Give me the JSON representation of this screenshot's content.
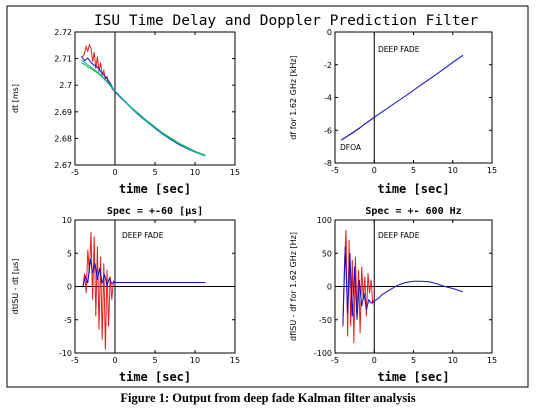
{
  "figure": {
    "suptitle": "ISU Time Delay and Doppler Prediction Filter",
    "caption": "Figure 1: Output from deep fade Kalman filter analysis"
  },
  "chart_data": [
    {
      "type": "line",
      "title": "",
      "xlabel": "time [sec]",
      "ylabel": "dt [ms]",
      "xlim": [
        -5,
        15
      ],
      "ylim": [
        2.67,
        2.72
      ],
      "xticks": [
        "-5",
        "0",
        "5",
        "10",
        "15"
      ],
      "yticks": [
        "2.72",
        "2.71",
        "2.7",
        "2.69",
        "2.68",
        "2.67"
      ],
      "annotations": [],
      "series": [
        {
          "color": "#e02020",
          "x": [
            -4.2,
            -3.9,
            -3.6,
            -3.4,
            -3.2,
            -3.0,
            -2.8,
            -2.6,
            -2.4,
            -2.2,
            -2.0,
            -1.8,
            -1.6,
            -1.4,
            -1.2,
            -1.0,
            -0.8,
            -0.6,
            -0.4,
            -0.2,
            0.0
          ],
          "y": [
            2.7105,
            2.7112,
            2.7145,
            2.7128,
            2.7152,
            2.7138,
            2.7088,
            2.7125,
            2.7062,
            2.7108,
            2.7052,
            2.7085,
            2.7038,
            2.7055,
            2.7022,
            2.7032,
            2.7005,
            2.7008,
            2.6988,
            2.6982,
            2.6975
          ]
        },
        {
          "color": "#1010c8",
          "x": [
            -4.2,
            -3.8,
            -3.4,
            -3.0,
            -2.6,
            -2.2,
            -1.8,
            -1.4,
            -1.0,
            -0.6,
            -0.2,
            0.0,
            1,
            2,
            3,
            4,
            5,
            6,
            7,
            8,
            9,
            10,
            11.3
          ],
          "y": [
            2.7108,
            2.7092,
            2.7102,
            2.7085,
            2.7075,
            2.7068,
            2.7052,
            2.7038,
            2.7025,
            2.7008,
            2.6985,
            2.6975,
            2.6945,
            2.6915,
            2.6887,
            2.6862,
            2.6838,
            2.6815,
            2.6795,
            2.6777,
            2.6762,
            2.6748,
            2.6735
          ]
        },
        {
          "color": "#20b020",
          "x": [
            -4.2,
            -3.0,
            -2.0,
            -1.0,
            0.0,
            2,
            4,
            6,
            8,
            10,
            11.3
          ],
          "y": [
            2.7085,
            2.7062,
            2.7042,
            2.7012,
            2.6978,
            2.6918,
            2.6866,
            2.682,
            2.6782,
            2.6752,
            2.6737
          ]
        },
        {
          "color": "#00b8b8",
          "x": [
            -4.2,
            -3.0,
            -2.0,
            -1.0,
            0.0,
            2,
            4,
            6,
            8,
            10,
            11.3
          ],
          "y": [
            2.7095,
            2.7068,
            2.7046,
            2.7015,
            2.6979,
            2.6916,
            2.6863,
            2.6817,
            2.6779,
            2.6749,
            2.6733
          ]
        }
      ]
    },
    {
      "type": "line",
      "title": "",
      "xlabel": "time [sec]",
      "ylabel": "df for 1.62 GHz [kHz]",
      "xlim": [
        -5,
        15
      ],
      "ylim": [
        -8,
        0
      ],
      "xticks": [
        "-5",
        "0",
        "5",
        "10",
        "15"
      ],
      "yticks": [
        "0",
        "-2",
        "-4",
        "-6",
        "-8"
      ],
      "annotations": [
        "DEEP FADE",
        "DFOA"
      ],
      "series": [
        {
          "color": "#e02020",
          "x": [
            -4.2,
            -3.6,
            -3.0,
            -2.4,
            -1.8,
            -1.2,
            -0.6,
            0.0
          ],
          "y": [
            -6.62,
            -6.42,
            -6.25,
            -6.05,
            -5.85,
            -5.62,
            -5.42,
            -5.22
          ]
        },
        {
          "color": "#1010c8",
          "x": [
            -4.2,
            -3.0,
            -2.0,
            -1.0,
            0.0,
            2,
            4,
            6,
            8,
            10,
            11.3
          ],
          "y": [
            -6.6,
            -6.22,
            -5.9,
            -5.55,
            -5.2,
            -4.55,
            -3.9,
            -3.22,
            -2.55,
            -1.85,
            -1.42
          ]
        }
      ]
    },
    {
      "type": "line",
      "title": "Spec = +-60 [μs]",
      "xlabel": "time [sec]",
      "ylabel": "dtISU - dt [μs]",
      "xlim": [
        -5,
        15
      ],
      "ylim": [
        -10,
        10
      ],
      "xticks": [
        "-5",
        "0",
        "5",
        "10",
        "15"
      ],
      "yticks": [
        "10",
        "5",
        "0",
        "-5",
        "-10"
      ],
      "annotations": [
        "DEEP FADE"
      ],
      "series": [
        {
          "color": "#e02020",
          "x": [
            -4.0,
            -3.8,
            -3.6,
            -3.4,
            -3.2,
            -3.0,
            -2.8,
            -2.6,
            -2.4,
            -2.2,
            -2.0,
            -1.8,
            -1.6,
            -1.4,
            -1.2,
            -1.0,
            -0.8,
            -0.6,
            -0.4,
            -0.2,
            0.0
          ],
          "y": [
            0,
            2.0,
            -1.0,
            5.5,
            2.0,
            8.2,
            -2.0,
            7.5,
            -4.5,
            6.0,
            -6.5,
            4.5,
            -8.0,
            3.5,
            -9.5,
            2.5,
            -6.0,
            1.5,
            -2.0,
            0.8,
            0.5
          ]
        },
        {
          "color": "#1010c8",
          "x": [
            -4.0,
            -3.7,
            -3.4,
            -3.1,
            -2.8,
            -2.5,
            -2.2,
            -1.9,
            -1.6,
            -1.3,
            -1.0,
            -0.7,
            -0.4,
            -0.1,
            0.0,
            2,
            4,
            6,
            8,
            10,
            11.3
          ],
          "y": [
            0.0,
            1.5,
            0.5,
            4.2,
            2.0,
            3.5,
            1.0,
            2.8,
            0.5,
            1.8,
            0.2,
            1.2,
            0.4,
            0.7,
            0.6,
            0.6,
            0.6,
            0.6,
            0.6,
            0.6,
            0.6
          ]
        }
      ]
    },
    {
      "type": "line",
      "title": "Spec = +- 600 Hz",
      "xlabel": "time [sec]",
      "ylabel": "dfISU - df for 1.62 GHz [Hz]",
      "xlim": [
        -5,
        15
      ],
      "ylim": [
        -100,
        100
      ],
      "xticks": [
        "-5",
        "0",
        "5",
        "10",
        "15"
      ],
      "yticks": [
        "100",
        "50",
        "0",
        "-50",
        "-100"
      ],
      "annotations": [
        "DEEP FADE"
      ],
      "series": [
        {
          "color": "#e02020",
          "x": [
            -4.0,
            -3.8,
            -3.6,
            -3.4,
            -3.2,
            -3.0,
            -2.8,
            -2.6,
            -2.4,
            -2.2,
            -2.0,
            -1.8,
            -1.6,
            -1.4,
            -1.2,
            -1.0,
            -0.8,
            -0.6,
            -0.4,
            -0.2,
            0.0
          ],
          "y": [
            -55,
            30,
            85,
            -75,
            70,
            -60,
            40,
            -85,
            45,
            -40,
            25,
            -70,
            30,
            -20,
            15,
            -45,
            20,
            -10,
            10,
            -25,
            -20
          ]
        },
        {
          "color": "#1010c8",
          "x": [
            -4.0,
            -3.7,
            -3.4,
            -3.1,
            -2.8,
            -2.5,
            -2.2,
            -1.9,
            -1.6,
            -1.3,
            -1.0,
            -0.7,
            -0.4,
            0.0,
            0.5,
            1,
            2,
            3,
            4,
            5,
            6,
            7,
            8,
            9,
            10,
            11.3
          ],
          "y": [
            -60,
            60,
            -40,
            50,
            -45,
            30,
            -50,
            10,
            -30,
            -10,
            -35,
            -20,
            -25,
            -22,
            -18,
            -12,
            -5,
            2,
            6,
            8,
            8,
            7,
            4,
            0,
            -3,
            -8
          ]
        }
      ]
    }
  ]
}
